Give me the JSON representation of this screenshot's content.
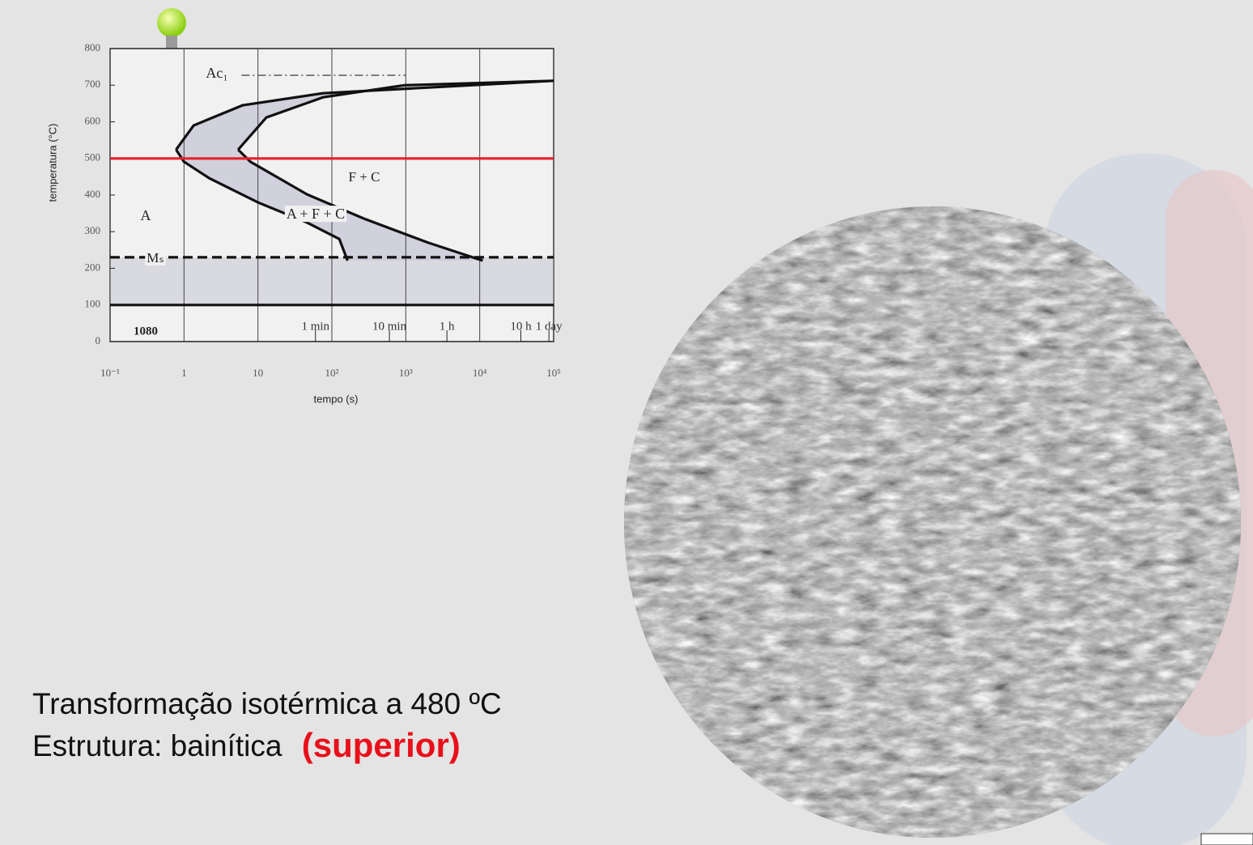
{
  "chart_data": {
    "type": "line",
    "xlabel": "tempo (s)",
    "ylabel": "temperatura (°C)",
    "xscale": "log",
    "xlim": [
      0.1,
      100000
    ],
    "xticks": [
      {
        "value": 0.1,
        "label": "10⁻¹"
      },
      1,
      10,
      {
        "value": 100,
        "label": "10²"
      },
      {
        "value": 1000,
        "label": "10³"
      },
      {
        "value": 10000,
        "label": "10⁴"
      },
      {
        "value": 100000,
        "label": "10⁵"
      }
    ],
    "ylim": [
      0,
      800
    ],
    "yticks": [
      0,
      100,
      200,
      300,
      400,
      500,
      600,
      700,
      800
    ],
    "time_markers": [
      {
        "value": 60,
        "label": "1 min"
      },
      {
        "value": 600,
        "label": "10 min"
      },
      {
        "value": 3600,
        "label": "1 h"
      },
      {
        "value": 36000,
        "label": "10 h"
      },
      {
        "value": 86400,
        "label": "1 day"
      }
    ],
    "series": [
      {
        "color": "#111111",
        "style": "solid",
        "x": [
          0.78,
          1,
          2.2,
          10,
          46,
          126,
          163
        ],
        "values": [
          524,
          491,
          446,
          380,
          325,
          280,
          221
        ]
      },
      {
        "color": "#111111",
        "style": "solid",
        "x": [
          0.78,
          1.35,
          6.2,
          76,
          100000
        ],
        "values": [
          524,
          590,
          645,
          678,
          712
        ]
      },
      {
        "color": "#111111",
        "style": "solid",
        "x": [
          5.4,
          7.9,
          46,
          270,
          2000,
          11000
        ],
        "values": [
          524,
          491,
          402,
          336,
          270,
          221
        ]
      },
      {
        "color": "#111111",
        "style": "solid",
        "x": [
          5.4,
          13,
          76,
          950,
          100000
        ],
        "values": [
          524,
          612,
          667,
          700,
          712
        ]
      },
      {
        "color": "#e8202a",
        "style": "solid",
        "x": [
          0.1,
          100000
        ],
        "values": [
          500,
          500
        ]
      },
      {
        "color": "#111111",
        "style": "dashed",
        "x": [
          0.1,
          100000
        ],
        "values": [
          230,
          230
        ]
      },
      {
        "color": "#555555",
        "style": "dashdot",
        "x": [
          6,
          1000
        ],
        "values": [
          727,
          727
        ]
      },
      {
        "color": "#111111",
        "style": "solid",
        "x": [
          0.1,
          100000
        ],
        "values": [
          100,
          100
        ]
      }
    ],
    "annotations": [
      "Ac₁",
      "A",
      "F + C",
      "A + F + C",
      "Mₛ",
      "1080"
    ]
  },
  "caption": {
    "line1": "Transformação isotérmica a 480 ºC",
    "line2": "Estrutura: bainítica",
    "highlight": "(superior)"
  }
}
